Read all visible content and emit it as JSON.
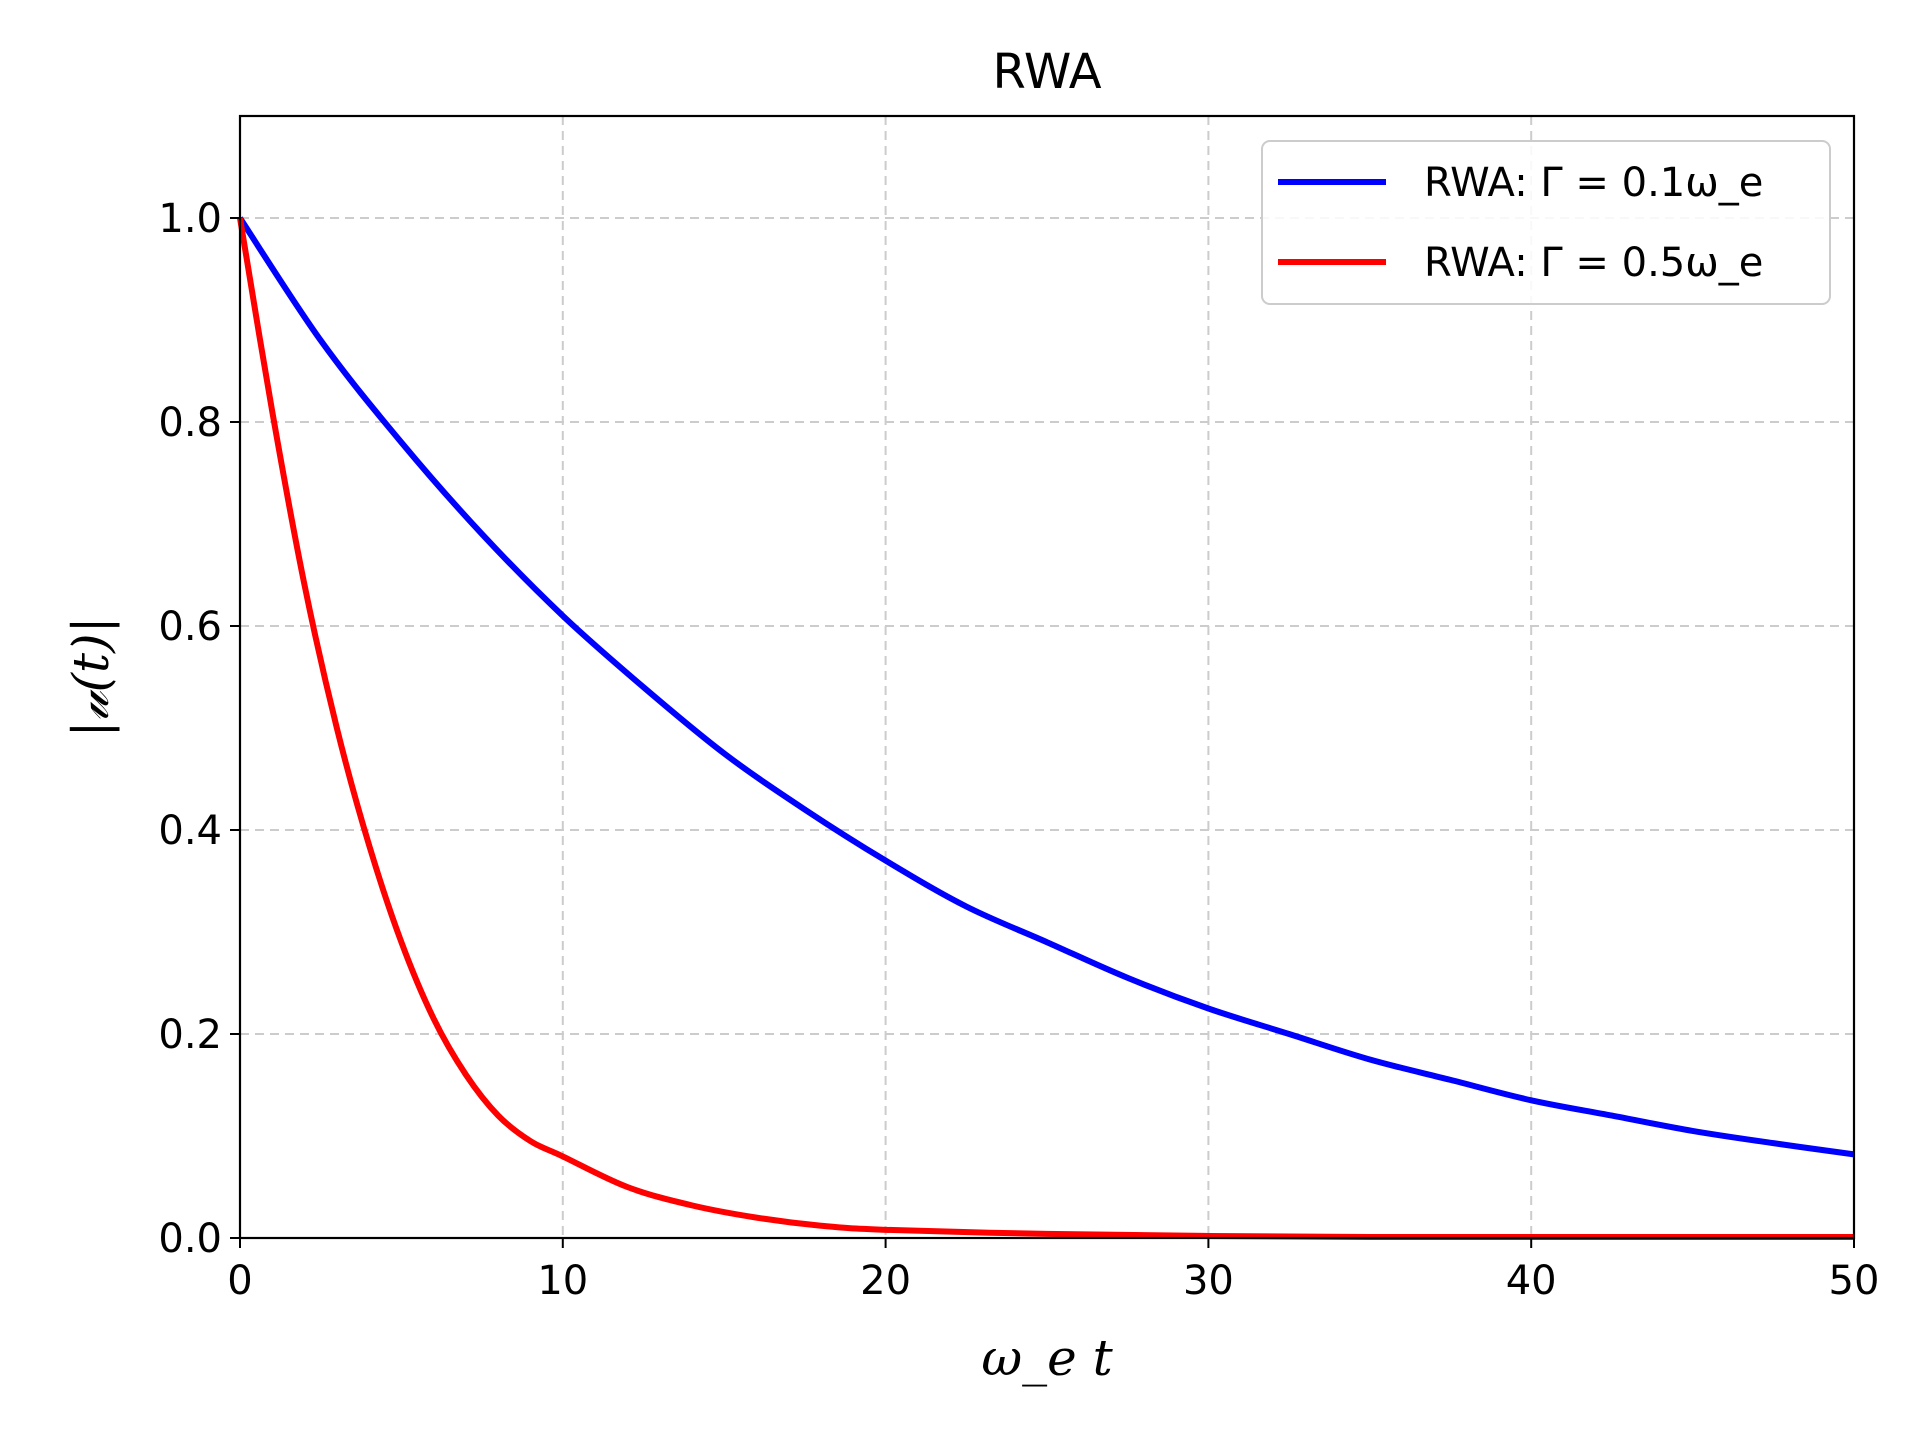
{
  "chart_data": {
    "type": "line",
    "title": "RWA",
    "xlabel": "ω_e t",
    "ylabel": "|𝓊(t)|",
    "xlim": [
      0,
      50
    ],
    "ylim": [
      0,
      1.1
    ],
    "xticks": [
      0,
      10,
      20,
      30,
      40,
      50
    ],
    "xtick_labels": [
      "0",
      "10",
      "20",
      "30",
      "40",
      "50"
    ],
    "yticks": [
      0.0,
      0.2,
      0.4,
      0.6,
      0.8,
      1.0
    ],
    "ytick_labels": [
      "0.0",
      "0.2",
      "0.4",
      "0.6",
      "0.8",
      "1.0"
    ],
    "grid": true,
    "legend_position": "top-right",
    "series": [
      {
        "name": "RWA: Γ = 0.1ω_e",
        "color": "#0000ff",
        "x": [
          0,
          2.5,
          5,
          7.5,
          10,
          12.5,
          15,
          17.5,
          20,
          22.5,
          25,
          27.5,
          30,
          32.5,
          35,
          37.5,
          40,
          42.5,
          45,
          47.5,
          50
        ],
        "y": [
          1.0,
          0.88,
          0.78,
          0.69,
          0.61,
          0.54,
          0.475,
          0.42,
          0.37,
          0.325,
          0.29,
          0.255,
          0.225,
          0.2,
          0.175,
          0.155,
          0.135,
          0.12,
          0.105,
          0.093,
          0.082
        ]
      },
      {
        "name": "RWA: Γ = 0.5ω_e",
        "color": "#ff0000",
        "x": [
          0,
          1,
          2,
          3,
          4,
          5,
          6,
          7,
          8,
          9,
          10,
          12,
          14,
          16,
          18,
          20,
          25,
          30,
          35,
          40,
          45,
          50
        ],
        "y": [
          1.0,
          0.81,
          0.64,
          0.5,
          0.385,
          0.29,
          0.215,
          0.16,
          0.12,
          0.095,
          0.08,
          0.05,
          0.032,
          0.02,
          0.012,
          0.008,
          0.004,
          0.002,
          0.001,
          0.001,
          0.001,
          0.001
        ]
      }
    ]
  }
}
